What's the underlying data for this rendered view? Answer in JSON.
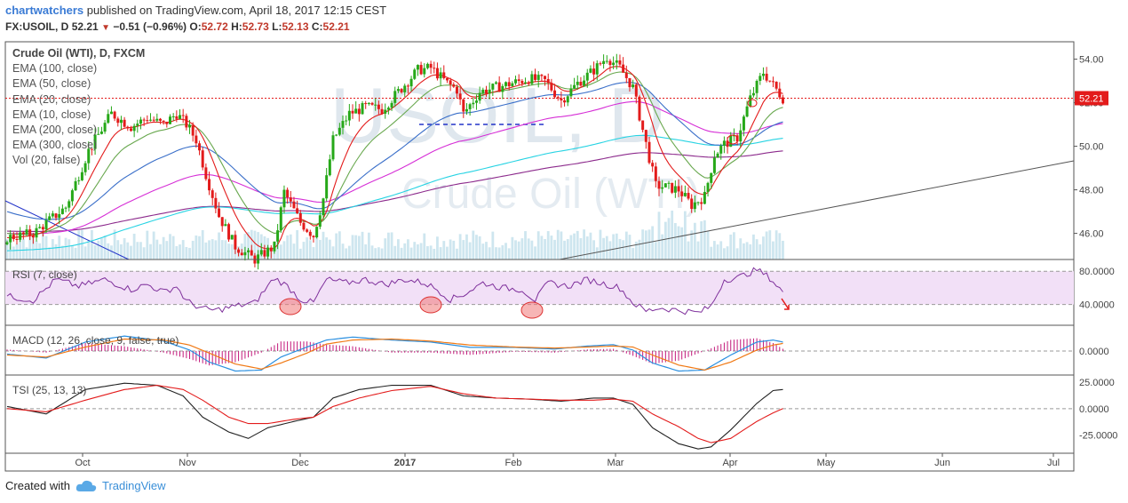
{
  "header": {
    "author": "chartwatchers",
    "published_text": "published on TradingView.com, April 18, 2017 12:15 CEST"
  },
  "ohlc": {
    "symbol": "FX:USOIL, D",
    "last": "52.21",
    "change": "−0.51 (−0.96%)",
    "o_label": "O:",
    "o": "52.72",
    "h_label": "H:",
    "h": "52.73",
    "l_label": "L:",
    "l": "52.13",
    "c_label": "C:",
    "c": "52.21"
  },
  "legend": {
    "title": "Crude Oil (WTI), D, FXCM",
    "items": [
      "EMA (100, close)",
      "EMA (50, close)",
      "EMA (20, close)",
      "EMA (10, close)",
      "EMA (200, close)",
      "EMA (300, close)",
      "Vol (20, false)"
    ]
  },
  "watermark": {
    "symbol": "USOIL, D",
    "name": "Crude Oil (WTI)"
  },
  "panes": {
    "rsi_label": "RSI (7, close)",
    "macd_label": "MACD (12, 26, close, 9, false, true)",
    "tsi_label": "TSI (25, 13, 13)"
  },
  "footer": {
    "created_with": "Created with",
    "brand": "TradingView"
  },
  "colors": {
    "up": "#26a818",
    "down": "#e31b1b",
    "ema10": "#e31b1b",
    "ema20": "#69a84f",
    "ema50": "#3a6fc9",
    "ema100": "#d62fd6",
    "ema200": "#27d3e3",
    "ema300": "#8c2a8c",
    "rsi": "#7e2f9b",
    "rsi_band": "#f2e0f7",
    "macd_line": "#2a8fe0",
    "macd_signal": "#f07a16",
    "macd_hist": "#c2187a",
    "tsi_line": "#222222",
    "tsi_signal": "#e31b1b",
    "price_label_bg": "#e31b1b"
  },
  "chart_data": {
    "type": "candlestick",
    "symbol": "FX:USOIL",
    "interval": "D",
    "price_axis": {
      "ticks": [
        "54.00",
        "52.00",
        "50.00",
        "48.00",
        "46.00"
      ],
      "range": [
        44.8,
        54.8
      ]
    },
    "time_axis": {
      "ticks": [
        "Oct",
        "Nov",
        "Dec",
        "2017",
        "Feb",
        "Mar",
        "Apr",
        "May",
        "Jun",
        "Jul"
      ]
    },
    "last_price": "52.21",
    "close_path": [
      [
        0,
        45.8
      ],
      [
        8,
        46.0
      ],
      [
        18,
        47.2
      ],
      [
        25,
        49.8
      ],
      [
        32,
        51.5
      ],
      [
        38,
        50.9
      ],
      [
        43,
        51.3
      ],
      [
        48,
        51.0
      ],
      [
        52,
        51.5
      ],
      [
        55,
        51.0
      ],
      [
        58,
        50.3
      ],
      [
        61,
        48.7
      ],
      [
        65,
        46.8
      ],
      [
        70,
        45.4
      ],
      [
        76,
        44.8
      ],
      [
        82,
        45.4
      ],
      [
        85,
        47.9
      ],
      [
        90,
        46.5
      ],
      [
        94,
        45.9
      ],
      [
        97,
        47.6
      ],
      [
        100,
        50.3
      ],
      [
        105,
        51.5
      ],
      [
        110,
        51.8
      ],
      [
        115,
        51.7
      ],
      [
        120,
        52.5
      ],
      [
        126,
        53.5
      ],
      [
        130,
        53.6
      ],
      [
        135,
        52.9
      ],
      [
        138,
        52.6
      ],
      [
        140,
        51.5
      ],
      [
        145,
        52.5
      ],
      [
        150,
        52.7
      ],
      [
        155,
        52.9
      ],
      [
        160,
        53.1
      ],
      [
        165,
        53.0
      ],
      [
        170,
        52.1
      ],
      [
        175,
        52.9
      ],
      [
        180,
        53.5
      ],
      [
        184,
        54.1
      ],
      [
        188,
        53.6
      ],
      [
        192,
        52.7
      ],
      [
        196,
        50.1
      ],
      [
        199,
        48.2
      ],
      [
        203,
        48.1
      ],
      [
        206,
        48.0
      ],
      [
        210,
        47.3
      ],
      [
        214,
        47.7
      ],
      [
        217,
        49.6
      ],
      [
        220,
        50.1
      ],
      [
        224,
        50.4
      ],
      [
        228,
        52.2
      ],
      [
        232,
        53.4
      ],
      [
        235,
        52.8
      ],
      [
        238,
        52.21
      ]
    ],
    "volume": {
      "range": [
        0,
        1
      ]
    },
    "rsi": {
      "levels": [
        "80.0000",
        "40.0000"
      ],
      "range": [
        15,
        92
      ],
      "values": [
        [
          0,
          50
        ],
        [
          8,
          45
        ],
        [
          15,
          70
        ],
        [
          22,
          62
        ],
        [
          30,
          70
        ],
        [
          38,
          58
        ],
        [
          43,
          64
        ],
        [
          48,
          55
        ],
        [
          52,
          62
        ],
        [
          55,
          44
        ],
        [
          60,
          35
        ],
        [
          64,
          33
        ],
        [
          70,
          38
        ],
        [
          76,
          42
        ],
        [
          82,
          72
        ],
        [
          86,
          62
        ],
        [
          90,
          46
        ],
        [
          94,
          42
        ],
        [
          98,
          70
        ],
        [
          104,
          66
        ],
        [
          110,
          70
        ],
        [
          116,
          64
        ],
        [
          122,
          70
        ],
        [
          128,
          66
        ],
        [
          132,
          58
        ],
        [
          136,
          46
        ],
        [
          140,
          52
        ],
        [
          146,
          66
        ],
        [
          152,
          60
        ],
        [
          158,
          58
        ],
        [
          162,
          45
        ],
        [
          166,
          66
        ],
        [
          172,
          62
        ],
        [
          178,
          70
        ],
        [
          184,
          64
        ],
        [
          188,
          60
        ],
        [
          192,
          42
        ],
        [
          196,
          32
        ],
        [
          200,
          36
        ],
        [
          206,
          33
        ],
        [
          212,
          30
        ],
        [
          216,
          38
        ],
        [
          220,
          70
        ],
        [
          224,
          72
        ],
        [
          230,
          82
        ],
        [
          234,
          72
        ],
        [
          238,
          55
        ]
      ]
    },
    "macd": {
      "ticks": [
        "0.0000"
      ],
      "range": [
        -1.2,
        1.2
      ],
      "macd": [
        [
          0,
          -0.15
        ],
        [
          12,
          -0.35
        ],
        [
          24,
          0.45
        ],
        [
          36,
          0.75
        ],
        [
          48,
          0.5
        ],
        [
          56,
          0.05
        ],
        [
          62,
          -0.55
        ],
        [
          70,
          -1.0
        ],
        [
          78,
          -0.95
        ],
        [
          84,
          -0.3
        ],
        [
          92,
          0.2
        ],
        [
          98,
          0.55
        ],
        [
          106,
          0.7
        ],
        [
          118,
          0.55
        ],
        [
          130,
          0.45
        ],
        [
          142,
          0.18
        ],
        [
          156,
          0.18
        ],
        [
          168,
          0.1
        ],
        [
          178,
          0.25
        ],
        [
          186,
          0.32
        ],
        [
          192,
          0.05
        ],
        [
          198,
          -0.6
        ],
        [
          206,
          -1.0
        ],
        [
          214,
          -0.95
        ],
        [
          222,
          -0.2
        ],
        [
          230,
          0.45
        ],
        [
          235,
          0.55
        ],
        [
          238,
          0.45
        ]
      ],
      "signal": [
        [
          0,
          -0.2
        ],
        [
          12,
          -0.3
        ],
        [
          24,
          0.2
        ],
        [
          36,
          0.6
        ],
        [
          48,
          0.55
        ],
        [
          56,
          0.3
        ],
        [
          62,
          -0.1
        ],
        [
          70,
          -0.65
        ],
        [
          78,
          -0.9
        ],
        [
          84,
          -0.6
        ],
        [
          92,
          -0.1
        ],
        [
          98,
          0.35
        ],
        [
          106,
          0.55
        ],
        [
          118,
          0.6
        ],
        [
          130,
          0.5
        ],
        [
          142,
          0.3
        ],
        [
          156,
          0.2
        ],
        [
          168,
          0.15
        ],
        [
          178,
          0.2
        ],
        [
          186,
          0.25
        ],
        [
          192,
          0.2
        ],
        [
          198,
          -0.2
        ],
        [
          206,
          -0.7
        ],
        [
          214,
          -0.95
        ],
        [
          222,
          -0.55
        ],
        [
          230,
          0.05
        ],
        [
          235,
          0.3
        ],
        [
          238,
          0.38
        ]
      ]
    },
    "tsi": {
      "ticks": [
        "25.0000",
        "0.0000",
        "-25.0000"
      ],
      "range": [
        -42,
        30
      ],
      "tsi": [
        [
          0,
          2
        ],
        [
          12,
          -5
        ],
        [
          24,
          18
        ],
        [
          36,
          24
        ],
        [
          46,
          22
        ],
        [
          54,
          12
        ],
        [
          60,
          -8
        ],
        [
          68,
          -22
        ],
        [
          74,
          -28
        ],
        [
          80,
          -18
        ],
        [
          88,
          -12
        ],
        [
          94,
          -8
        ],
        [
          100,
          10
        ],
        [
          108,
          18
        ],
        [
          118,
          22
        ],
        [
          130,
          22
        ],
        [
          140,
          12
        ],
        [
          150,
          10
        ],
        [
          160,
          9
        ],
        [
          170,
          7
        ],
        [
          180,
          10
        ],
        [
          186,
          10
        ],
        [
          192,
          4
        ],
        [
          198,
          -18
        ],
        [
          206,
          -33
        ],
        [
          212,
          -38
        ],
        [
          216,
          -36
        ],
        [
          222,
          -20
        ],
        [
          230,
          5
        ],
        [
          235,
          17
        ],
        [
          238,
          18
        ]
      ],
      "signal": [
        [
          0,
          0
        ],
        [
          12,
          -3
        ],
        [
          24,
          8
        ],
        [
          36,
          18
        ],
        [
          46,
          22
        ],
        [
          54,
          18
        ],
        [
          60,
          8
        ],
        [
          68,
          -8
        ],
        [
          74,
          -14
        ],
        [
          80,
          -14
        ],
        [
          88,
          -10
        ],
        [
          94,
          -8
        ],
        [
          100,
          2
        ],
        [
          108,
          10
        ],
        [
          118,
          17
        ],
        [
          130,
          21
        ],
        [
          140,
          14
        ],
        [
          150,
          10
        ],
        [
          160,
          9
        ],
        [
          170,
          8
        ],
        [
          180,
          8
        ],
        [
          186,
          9
        ],
        [
          192,
          7
        ],
        [
          198,
          -5
        ],
        [
          206,
          -17
        ],
        [
          212,
          -28
        ],
        [
          216,
          -32
        ],
        [
          222,
          -28
        ],
        [
          230,
          -12
        ],
        [
          235,
          -4
        ],
        [
          238,
          0
        ]
      ]
    }
  }
}
